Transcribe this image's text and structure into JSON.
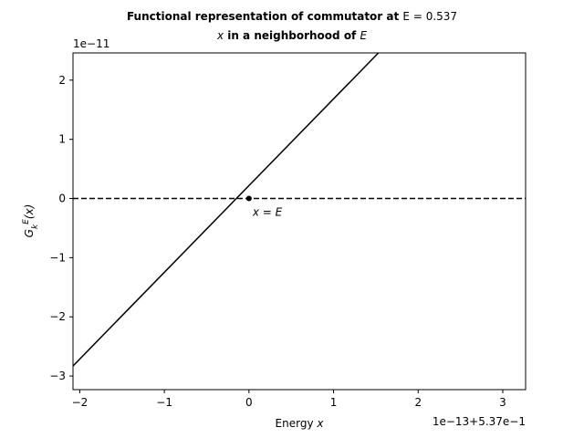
{
  "chart_data": {
    "type": "line",
    "title_line1_text": "Functional representation of commutator at ",
    "title_line1_math": "E = 0.537",
    "title_line2_math_start": "x",
    "title_line2_text": " in a neighborhood of ",
    "title_line2_math_end": "E",
    "xlabel_text": "Energy ",
    "xlabel_math": "x",
    "ylabel": "G_k^E(x)",
    "x_offset_label": "1e−13+5.37e−1",
    "y_offset_label": "1e−11",
    "x_units_note": "x values below are in units of 1e-13, offset by 0.537",
    "y_units_note": "y values below are in units of 1e-11",
    "xlim": [
      -2.08,
      3.27
    ],
    "ylim": [
      -3.23,
      2.46
    ],
    "xticks": [
      -2,
      -1,
      0,
      1,
      2,
      3
    ],
    "xtick_labels": [
      "−2",
      "−1",
      "0",
      "1",
      "2",
      "3"
    ],
    "yticks": [
      -3,
      -2,
      -1,
      0,
      1,
      2
    ],
    "ytick_labels": [
      "−3",
      "−2",
      "−1",
      "0",
      "1",
      "2"
    ],
    "grid": false,
    "series": [
      {
        "style": "solid",
        "color": "#000000",
        "x": [
          -2.08,
          1.53
        ],
        "y": [
          -2.83,
          2.46
        ]
      },
      {
        "style": "dashed",
        "color": "#000000",
        "x": [
          -2.08,
          3.27
        ],
        "y": [
          0,
          0
        ]
      }
    ],
    "points": [
      {
        "x": 0,
        "y": 0,
        "color": "#000000"
      }
    ],
    "annotation": {
      "text": "x = E",
      "x": 0,
      "y": 0
    }
  }
}
